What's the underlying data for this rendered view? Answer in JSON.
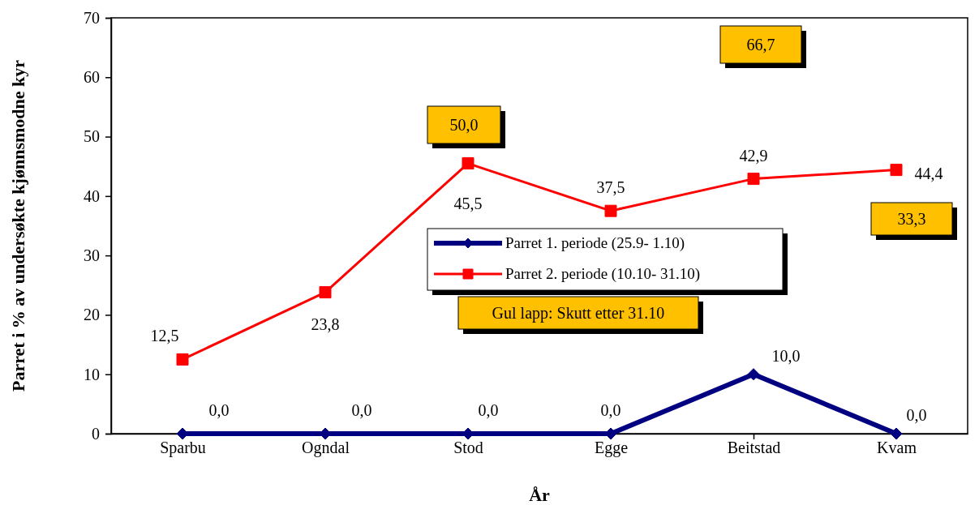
{
  "chart_data": {
    "type": "line",
    "xlabel": "År",
    "ylabel": "Parret i % av undersøkte kjønnsmodne kyr",
    "categories": [
      "Sparbu",
      "Ogndal",
      "Stod",
      "Egge",
      "Beitstad",
      "Kvam"
    ],
    "ylim": [
      0,
      70
    ],
    "yticks": [
      0,
      10,
      20,
      30,
      40,
      50,
      60,
      70
    ],
    "grid": false,
    "legend": "center",
    "series": [
      {
        "name": "Parret 1. periode (25.9- 1.10)",
        "color": "#000080",
        "marker": "diamond",
        "values": [
          0,
          0,
          0,
          0,
          10,
          0
        ],
        "value_labels": [
          "0,0",
          "0,0",
          "0,0",
          "0,0",
          "10,0",
          "0,0"
        ]
      },
      {
        "name": "Parret 2. periode (10.10- 31.10)",
        "color": "#ff0000",
        "marker": "square",
        "values": [
          12.5,
          23.8,
          45.5,
          37.5,
          42.9,
          44.4
        ],
        "value_labels": [
          "12,5",
          "23,8",
          "45,5",
          "37,5",
          "42,9",
          "44,4"
        ]
      }
    ],
    "annotations": [
      "50,0",
      "66,7",
      "33,3",
      "Gul lapp: Skutt etter 31.10"
    ]
  }
}
